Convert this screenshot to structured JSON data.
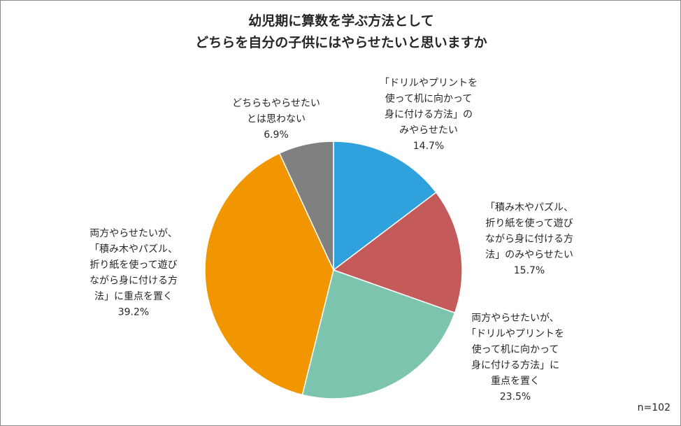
{
  "chart_data": {
    "type": "pie",
    "title": [
      "幼児期に算数を学ぶ方法として",
      "どちらを自分の子供にはやらせたいと思いますか"
    ],
    "slices": [
      {
        "label": [
          "「ドリルやプリントを",
          "使って机に向かって",
          "身に付ける方法」の",
          "みやらせたい"
        ],
        "value": 14.7,
        "display": "14.7%",
        "color": "#2fa2dd"
      },
      {
        "label": [
          "「積み木やパズル、",
          "折り紙を使って遊び",
          "ながら身に付ける方",
          "法」のみやらせたい"
        ],
        "value": 15.7,
        "display": "15.7%",
        "color": "#c55a5a"
      },
      {
        "label": [
          "両方やらせたいが、",
          "「ドリルやプリントを",
          "使って机に向かって",
          "身に付ける方法」に",
          "重点を置く"
        ],
        "value": 23.5,
        "display": "23.5%",
        "color": "#7cc4ae"
      },
      {
        "label": [
          "両方やらせたいが、",
          "「積み木やパズル、",
          "折り紙を使って遊び",
          "ながら身に付ける方",
          "法」に重点を置く"
        ],
        "value": 39.2,
        "display": "39.2%",
        "color": "#f29600"
      },
      {
        "label": [
          "どちらもやらせたい",
          "とは思わない"
        ],
        "value": 6.9,
        "display": "6.9%",
        "color": "#808080"
      }
    ]
  },
  "note": "n=102"
}
